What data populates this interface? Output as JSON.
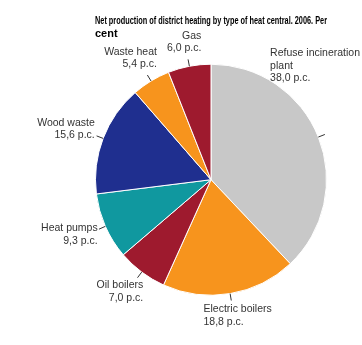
{
  "chart_data": {
    "type": "pie",
    "title": "Net production of district heating by type of heat central. 2006. Per cent",
    "categories": [
      "Refuse incineration plant",
      "Electric boilers",
      "Oil boilers",
      "Heat pumps",
      "Wood waste",
      "Waste heat",
      "Gas"
    ],
    "values": [
      38.0,
      18.8,
      7.0,
      9.3,
      15.6,
      5.4,
      6.0
    ],
    "value_labels": [
      "38,0 p.c.",
      "18,8 p.c.",
      "7,0 p.c.",
      "9,3 p.c.",
      "15,6 p.c.",
      "5,4 p.c.",
      "6,0 p.c."
    ],
    "colors": [
      "#c8c8c8",
      "#f7941d",
      "#9e1a2e",
      "#10989f",
      "#1f2f8f",
      "#f7941d",
      "#9e1a2e"
    ],
    "data_labels": true,
    "legend": false
  }
}
